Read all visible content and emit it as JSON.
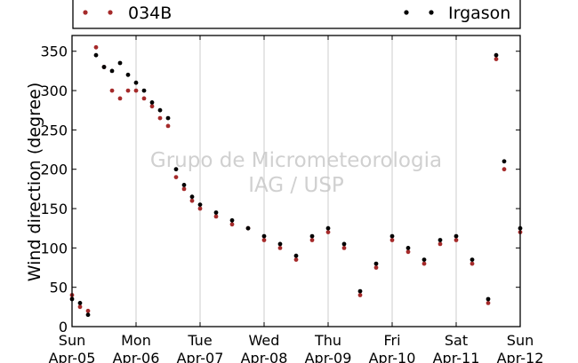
{
  "chart_data": {
    "type": "scatter",
    "title": "",
    "ylabel": "Wind direction (degree)",
    "xlabel": "",
    "ylim": [
      0,
      370
    ],
    "yticks": [
      0,
      50,
      100,
      150,
      200,
      250,
      300,
      350
    ],
    "xlim": [
      "2015-04-05 00:00",
      "2015-04-12 00:00"
    ],
    "x_ticks": [
      {
        "day": "Sun",
        "date": "Apr-05"
      },
      {
        "day": "Mon",
        "date": "Apr-06"
      },
      {
        "day": "Tue",
        "date": "Apr-07"
      },
      {
        "day": "Wed",
        "date": "Apr-08"
      },
      {
        "day": "Thu",
        "date": "Apr-09"
      },
      {
        "day": "Fri",
        "date": "Apr-10"
      },
      {
        "day": "Sat",
        "date": "Apr-11"
      },
      {
        "day": "Sun",
        "date": "Apr-12"
      }
    ],
    "grid": "vertical",
    "legend_placement": "top",
    "watermark": [
      "Grupo de Micrometeorologia",
      "IAG / USP"
    ],
    "series": [
      {
        "name": "034B",
        "color": "#a52a2a",
        "points": [
          [
            "2015-04-05 00:00",
            40
          ],
          [
            "2015-04-05 03:00",
            25
          ],
          [
            "2015-04-05 06:00",
            20
          ],
          [
            "2015-04-05 09:00",
            355
          ],
          [
            "2015-04-05 12:00",
            330
          ],
          [
            "2015-04-05 15:00",
            300
          ],
          [
            "2015-04-05 18:00",
            290
          ],
          [
            "2015-04-05 21:00",
            300
          ],
          [
            "2015-04-06 00:00",
            300
          ],
          [
            "2015-04-06 03:00",
            290
          ],
          [
            "2015-04-06 06:00",
            280
          ],
          [
            "2015-04-06 09:00",
            265
          ],
          [
            "2015-04-06 12:00",
            255
          ],
          [
            "2015-04-06 15:00",
            190
          ],
          [
            "2015-04-06 18:00",
            175
          ],
          [
            "2015-04-06 21:00",
            160
          ],
          [
            "2015-04-07 00:00",
            150
          ],
          [
            "2015-04-07 06:00",
            140
          ],
          [
            "2015-04-07 12:00",
            130
          ],
          [
            "2015-04-07 18:00",
            125
          ],
          [
            "2015-04-08 00:00",
            110
          ],
          [
            "2015-04-08 06:00",
            100
          ],
          [
            "2015-04-08 12:00",
            85
          ],
          [
            "2015-04-08 18:00",
            110
          ],
          [
            "2015-04-09 00:00",
            120
          ],
          [
            "2015-04-09 06:00",
            100
          ],
          [
            "2015-04-09 12:00",
            40
          ],
          [
            "2015-04-09 18:00",
            75
          ],
          [
            "2015-04-10 00:00",
            110
          ],
          [
            "2015-04-10 06:00",
            95
          ],
          [
            "2015-04-10 12:00",
            80
          ],
          [
            "2015-04-10 18:00",
            105
          ],
          [
            "2015-04-11 00:00",
            110
          ],
          [
            "2015-04-11 06:00",
            80
          ],
          [
            "2015-04-11 12:00",
            30
          ],
          [
            "2015-04-11 15:00",
            340
          ],
          [
            "2015-04-11 18:00",
            200
          ],
          [
            "2015-04-12 00:00",
            120
          ]
        ]
      },
      {
        "name": "Irgason",
        "color": "#000000",
        "points": [
          [
            "2015-04-05 00:00",
            35
          ],
          [
            "2015-04-05 03:00",
            30
          ],
          [
            "2015-04-05 06:00",
            15
          ],
          [
            "2015-04-05 09:00",
            345
          ],
          [
            "2015-04-05 12:00",
            330
          ],
          [
            "2015-04-05 15:00",
            325
          ],
          [
            "2015-04-05 18:00",
            335
          ],
          [
            "2015-04-05 21:00",
            320
          ],
          [
            "2015-04-06 00:00",
            310
          ],
          [
            "2015-04-06 03:00",
            300
          ],
          [
            "2015-04-06 06:00",
            285
          ],
          [
            "2015-04-06 09:00",
            275
          ],
          [
            "2015-04-06 12:00",
            265
          ],
          [
            "2015-04-06 15:00",
            200
          ],
          [
            "2015-04-06 18:00",
            180
          ],
          [
            "2015-04-06 21:00",
            165
          ],
          [
            "2015-04-07 00:00",
            155
          ],
          [
            "2015-04-07 06:00",
            145
          ],
          [
            "2015-04-07 12:00",
            135
          ],
          [
            "2015-04-07 18:00",
            125
          ],
          [
            "2015-04-08 00:00",
            115
          ],
          [
            "2015-04-08 06:00",
            105
          ],
          [
            "2015-04-08 12:00",
            90
          ],
          [
            "2015-04-08 18:00",
            115
          ],
          [
            "2015-04-09 00:00",
            125
          ],
          [
            "2015-04-09 06:00",
            105
          ],
          [
            "2015-04-09 12:00",
            45
          ],
          [
            "2015-04-09 18:00",
            80
          ],
          [
            "2015-04-10 00:00",
            115
          ],
          [
            "2015-04-10 06:00",
            100
          ],
          [
            "2015-04-10 12:00",
            85
          ],
          [
            "2015-04-10 18:00",
            110
          ],
          [
            "2015-04-11 00:00",
            115
          ],
          [
            "2015-04-11 06:00",
            85
          ],
          [
            "2015-04-11 12:00",
            35
          ],
          [
            "2015-04-11 15:00",
            345
          ],
          [
            "2015-04-11 18:00",
            210
          ],
          [
            "2015-04-12 00:00",
            125
          ]
        ]
      }
    ]
  }
}
